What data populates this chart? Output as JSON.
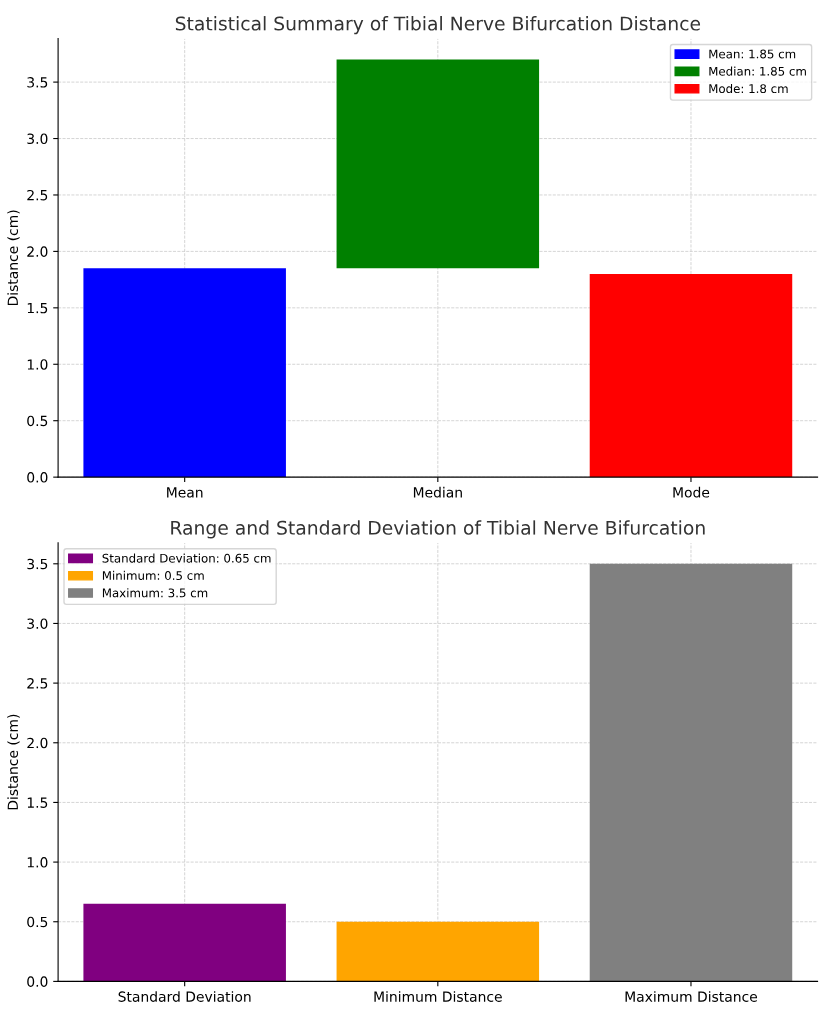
{
  "chart_data": [
    {
      "type": "bar",
      "title": "Statistical Summary of Tibial Nerve Bifurcation Distance",
      "ylabel": "Distance (cm)",
      "categories": [
        "Mean",
        "Median",
        "Mode"
      ],
      "series": [
        {
          "name": "Mean: 1.85 cm",
          "color": "#0000ff",
          "values": [
            1.85,
            null,
            null
          ]
        },
        {
          "name": "Median: 1.85 cm",
          "color": "#008000",
          "values": [
            null,
            1.85,
            null
          ],
          "base": [
            null,
            1.85,
            null
          ]
        },
        {
          "name": "Mode: 1.8 cm",
          "color": "#ff0000",
          "values": [
            null,
            null,
            1.8
          ]
        }
      ],
      "ylim": [
        0,
        3.885
      ],
      "yticks": [
        {
          "value": 0,
          "label": "0.0"
        },
        0.5,
        {
          "value": 1,
          "label": "1.0"
        },
        1.5,
        {
          "value": 2,
          "label": "2.0"
        },
        2.5,
        {
          "value": 3,
          "label": "3.0"
        },
        3.5
      ],
      "grid": true,
      "legend": "top right"
    },
    {
      "type": "bar",
      "title": "Range and Standard Deviation of Tibial Nerve Bifurcation",
      "ylabel": "Distance (cm)",
      "categories": [
        "Standard Deviation",
        "Minimum Distance",
        "Maximum Distance"
      ],
      "series": [
        {
          "name": "Standard Deviation: 0.65 cm",
          "color": "#800080",
          "values": [
            0.65,
            null,
            null
          ]
        },
        {
          "name": "Minimum: 0.5 cm",
          "color": "#ffa500",
          "values": [
            null,
            0.5,
            null
          ]
        },
        {
          "name": "Maximum: 3.5 cm",
          "color": "#808080",
          "values": [
            null,
            null,
            3.5
          ]
        }
      ],
      "ylim": [
        0,
        3.675
      ],
      "yticks": [
        {
          "value": 0,
          "label": "0.0"
        },
        0.5,
        {
          "value": 1,
          "label": "1.0"
        },
        1.5,
        {
          "value": 2,
          "label": "2.0"
        },
        2.5,
        {
          "value": 3,
          "label": "3.0"
        },
        3.5
      ],
      "grid": true,
      "legend": "top left"
    }
  ]
}
